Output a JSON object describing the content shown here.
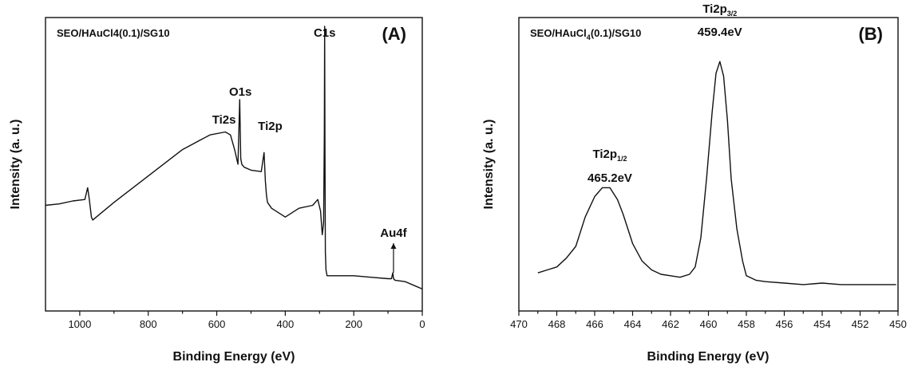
{
  "chart_data": [
    {
      "type": "line",
      "panel_label": "(A)",
      "title": "SEO/HAuCl4(0.1)/SG10",
      "xlabel": "Binding Energy (eV)",
      "ylabel": "Intensity (a. u.)",
      "xlim": [
        1100,
        0
      ],
      "ylim": [
        0,
        100
      ],
      "xticks": [
        1000,
        800,
        600,
        400,
        200,
        0
      ],
      "yticks_shown": false,
      "grid": false,
      "series": [
        {
          "x": [
            1100,
            1060,
            1020,
            985,
            977,
            972,
            966,
            962,
            900,
            800,
            700,
            620,
            575,
            560,
            548,
            538,
            533,
            530,
            527,
            520,
            500,
            470,
            462,
            458,
            455,
            452,
            440,
            400,
            360,
            320,
            305,
            297,
            292,
            288,
            286,
            285,
            284,
            283,
            281,
            278,
            260,
            200,
            150,
            100,
            90,
            86,
            84,
            80,
            50,
            20,
            0
          ],
          "y": [
            36,
            36.5,
            37.5,
            38,
            42,
            38,
            32,
            31,
            37,
            46,
            55,
            60,
            61,
            60,
            55,
            50,
            72,
            52,
            50,
            49,
            48,
            47.5,
            54,
            44,
            39.5,
            37,
            35,
            32,
            35,
            36,
            38,
            34,
            26,
            30,
            60,
            97,
            55,
            20,
            14,
            12,
            12,
            12,
            11.5,
            11,
            11,
            13,
            11,
            10.5,
            10,
            8.5,
            7.5
          ]
        }
      ],
      "annotations": [
        {
          "text": "C1s",
          "x": 285
        },
        {
          "text": "O1s",
          "x": 531
        },
        {
          "text": "Ti2s",
          "x": 565
        },
        {
          "text": "Ti2p",
          "x": 458
        },
        {
          "text": "Au4f",
          "x": 84
        }
      ]
    },
    {
      "type": "line",
      "panel_label": "(B)",
      "title_parts": [
        "SEO/HAuCl",
        "4",
        "(0.1)/SG10"
      ],
      "xlabel": "Binding Energy (eV)",
      "ylabel": "Intensity (a. u.)",
      "xlim": [
        470,
        450
      ],
      "ylim": [
        0,
        100
      ],
      "xticks": [
        470,
        468,
        466,
        464,
        462,
        460,
        458,
        456,
        454,
        452,
        450
      ],
      "yticks_shown": false,
      "grid": false,
      "series": [
        {
          "x": [
            469,
            468.5,
            468,
            467.5,
            467,
            466.5,
            466,
            465.6,
            465.2,
            464.8,
            464.5,
            464,
            463.5,
            463,
            462.5,
            462,
            461.5,
            461,
            460.7,
            460.4,
            460.1,
            459.8,
            459.6,
            459.4,
            459.2,
            459,
            458.8,
            458.5,
            458.2,
            458,
            457.5,
            457,
            456,
            455,
            454,
            453,
            452,
            451,
            450.1
          ],
          "y": [
            13,
            14,
            15,
            18,
            22,
            32,
            39,
            42,
            42,
            38,
            33,
            23,
            17,
            14,
            12.5,
            12,
            11.5,
            12.5,
            15,
            25,
            45,
            68,
            81,
            85,
            80,
            65,
            45,
            28,
            17,
            12,
            10.5,
            10,
            9.5,
            9,
            9.5,
            9,
            9,
            9,
            9
          ]
        }
      ],
      "annotations": [
        {
          "lines": [
            [
              "Ti2p",
              "1/2"
            ],
            [
              "465.2eV"
            ]
          ],
          "x": 465.2
        },
        {
          "lines": [
            [
              "Ti2p",
              "3/2"
            ],
            [
              "459.4eV"
            ]
          ],
          "x": 459.4
        }
      ]
    }
  ]
}
